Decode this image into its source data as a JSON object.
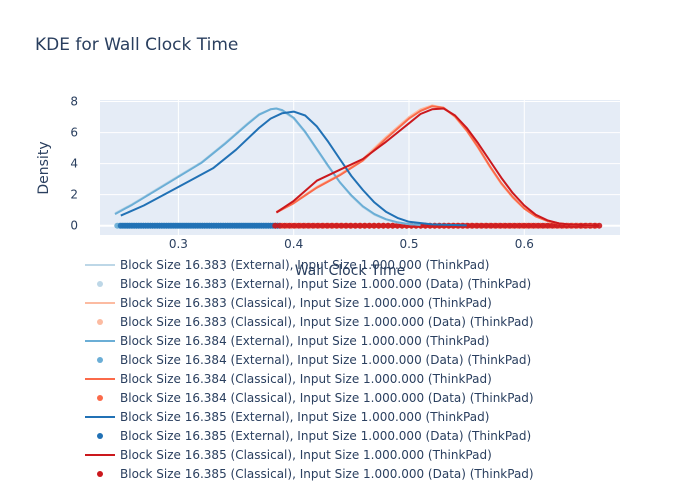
{
  "chart_data": {
    "type": "line",
    "title": "KDE for Wall Clock Time",
    "xlabel": "Wall Clock Time",
    "ylabel": "Density",
    "xlim": [
      0.232,
      0.683
    ],
    "ylim": [
      -0.6,
      8.1
    ],
    "x_ticks": [
      {
        "value": 0.3,
        "label": "0.3"
      },
      {
        "value": 0.4,
        "label": "0.4"
      },
      {
        "value": 0.5,
        "label": "0.5"
      },
      {
        "value": 0.6,
        "label": "0.6"
      }
    ],
    "y_ticks": [
      {
        "value": 0,
        "label": "0"
      },
      {
        "value": 2,
        "label": "2"
      },
      {
        "value": 4,
        "label": "4"
      },
      {
        "value": 6,
        "label": "6"
      },
      {
        "value": 8,
        "label": "8"
      }
    ],
    "grid": true,
    "legend_position": "bottom",
    "series": [
      {
        "name": "Block Size 16.383 (External), Input Size 1.000.000 (ThinkPad)",
        "kind": "line",
        "color": "#bdd7e7",
        "x": [
          0.245,
          0.26,
          0.28,
          0.3,
          0.32,
          0.34,
          0.36,
          0.37,
          0.38,
          0.385,
          0.39,
          0.4,
          0.41,
          0.42,
          0.43,
          0.44,
          0.45,
          0.46,
          0.47,
          0.48,
          0.49,
          0.5,
          0.51
        ],
        "y": [
          0.8,
          1.4,
          2.3,
          3.2,
          4.1,
          5.3,
          6.6,
          7.2,
          7.5,
          7.55,
          7.4,
          6.9,
          6.0,
          4.9,
          3.8,
          2.8,
          1.9,
          1.2,
          0.7,
          0.4,
          0.2,
          0.1,
          0.05
        ]
      },
      {
        "name": "Block Size 16.383 (External), Input Size 1.000.000 (Data) (ThinkPad)",
        "kind": "markers",
        "color": "#bdd7e7",
        "x_range": [
          0.247,
          0.388
        ]
      },
      {
        "name": "Block Size 16.383 (Classical), Input Size 1.000.000 (ThinkPad)",
        "kind": "line",
        "color": "#fcbba1",
        "x": [
          0.385,
          0.4,
          0.42,
          0.44,
          0.46,
          0.48,
          0.5,
          0.51,
          0.52,
          0.53,
          0.54,
          0.55,
          0.56,
          0.57,
          0.58,
          0.59,
          0.6,
          0.61,
          0.62,
          0.63,
          0.64,
          0.66
        ],
        "y": [
          0.9,
          1.5,
          2.5,
          3.3,
          4.3,
          5.7,
          7.0,
          7.5,
          7.75,
          7.6,
          7.0,
          6.1,
          5.0,
          3.8,
          2.7,
          1.8,
          1.1,
          0.6,
          0.3,
          0.15,
          0.07,
          0.02
        ]
      },
      {
        "name": "Block Size 16.383 (Classical), Input Size 1.000.000 (Data) (ThinkPad)",
        "kind": "markers",
        "color": "#fcbba1",
        "x_range": [
          0.386,
          0.662
        ]
      },
      {
        "name": "Block Size 16.384 (External), Input Size 1.000.000 (ThinkPad)",
        "kind": "line",
        "color": "#6baed6",
        "x": [
          0.245,
          0.26,
          0.28,
          0.3,
          0.32,
          0.34,
          0.36,
          0.37,
          0.38,
          0.385,
          0.39,
          0.4,
          0.41,
          0.42,
          0.43,
          0.44,
          0.45,
          0.46,
          0.47,
          0.48,
          0.49,
          0.5,
          0.51
        ],
        "y": [
          0.75,
          1.35,
          2.25,
          3.15,
          4.05,
          5.25,
          6.55,
          7.15,
          7.5,
          7.55,
          7.45,
          6.95,
          6.05,
          4.95,
          3.85,
          2.8,
          1.95,
          1.25,
          0.75,
          0.42,
          0.22,
          0.1,
          0.05
        ]
      },
      {
        "name": "Block Size 16.384 (External), Input Size 1.000.000 (Data) (ThinkPad)",
        "kind": "markers",
        "color": "#6baed6",
        "x_range": [
          0.247,
          0.388
        ]
      },
      {
        "name": "Block Size 16.384 (Classical), Input Size 1.000.000 (ThinkPad)",
        "kind": "line",
        "color": "#fb6a4a",
        "x": [
          0.385,
          0.4,
          0.42,
          0.44,
          0.46,
          0.48,
          0.5,
          0.51,
          0.52,
          0.53,
          0.54,
          0.55,
          0.56,
          0.57,
          0.58,
          0.59,
          0.6,
          0.61,
          0.62,
          0.63,
          0.64,
          0.66
        ],
        "y": [
          0.85,
          1.45,
          2.45,
          3.25,
          4.2,
          5.6,
          6.9,
          7.4,
          7.7,
          7.6,
          7.05,
          6.15,
          5.05,
          3.85,
          2.75,
          1.85,
          1.1,
          0.6,
          0.3,
          0.15,
          0.07,
          0.02
        ]
      },
      {
        "name": "Block Size 16.384 (Classical), Input Size 1.000.000 (Data) (ThinkPad)",
        "kind": "markers",
        "color": "#fb6a4a",
        "x_range": [
          0.386,
          0.662
        ]
      },
      {
        "name": "Block Size 16.385 (External), Input Size 1.000.000 (ThinkPad)",
        "kind": "line",
        "color": "#2171b5",
        "x": [
          0.25,
          0.27,
          0.29,
          0.31,
          0.33,
          0.35,
          0.37,
          0.38,
          0.39,
          0.4,
          0.41,
          0.42,
          0.43,
          0.44,
          0.45,
          0.46,
          0.47,
          0.48,
          0.49,
          0.5,
          0.52,
          0.55
        ],
        "y": [
          0.65,
          1.3,
          2.1,
          2.9,
          3.7,
          4.9,
          6.3,
          6.9,
          7.25,
          7.35,
          7.1,
          6.4,
          5.4,
          4.3,
          3.2,
          2.3,
          1.5,
          0.9,
          0.5,
          0.25,
          0.08,
          0.02
        ]
      },
      {
        "name": "Block Size 16.385 (External), Input Size 1.000.000 (Data) (ThinkPad)",
        "kind": "markers",
        "color": "#2171b5",
        "x_range": [
          0.25,
          0.386
        ]
      },
      {
        "name": "Block Size 16.385 (Classical), Input Size 1.000.000 (ThinkPad)",
        "kind": "line",
        "color": "#cb181d",
        "x": [
          0.385,
          0.4,
          0.42,
          0.44,
          0.46,
          0.48,
          0.5,
          0.51,
          0.52,
          0.53,
          0.54,
          0.55,
          0.56,
          0.57,
          0.58,
          0.59,
          0.6,
          0.61,
          0.62,
          0.63,
          0.64,
          0.66,
          0.665
        ],
        "y": [
          0.85,
          1.6,
          2.9,
          3.6,
          4.3,
          5.4,
          6.6,
          7.2,
          7.5,
          7.55,
          7.1,
          6.3,
          5.3,
          4.2,
          3.1,
          2.1,
          1.3,
          0.7,
          0.35,
          0.15,
          0.07,
          0.02,
          0.01
        ]
      },
      {
        "name": "Block Size 16.385 (Classical), Input Size 1.000.000 (Data) (ThinkPad)",
        "kind": "markers",
        "color": "#cb181d",
        "x_range": [
          0.384,
          0.665
        ]
      }
    ]
  }
}
